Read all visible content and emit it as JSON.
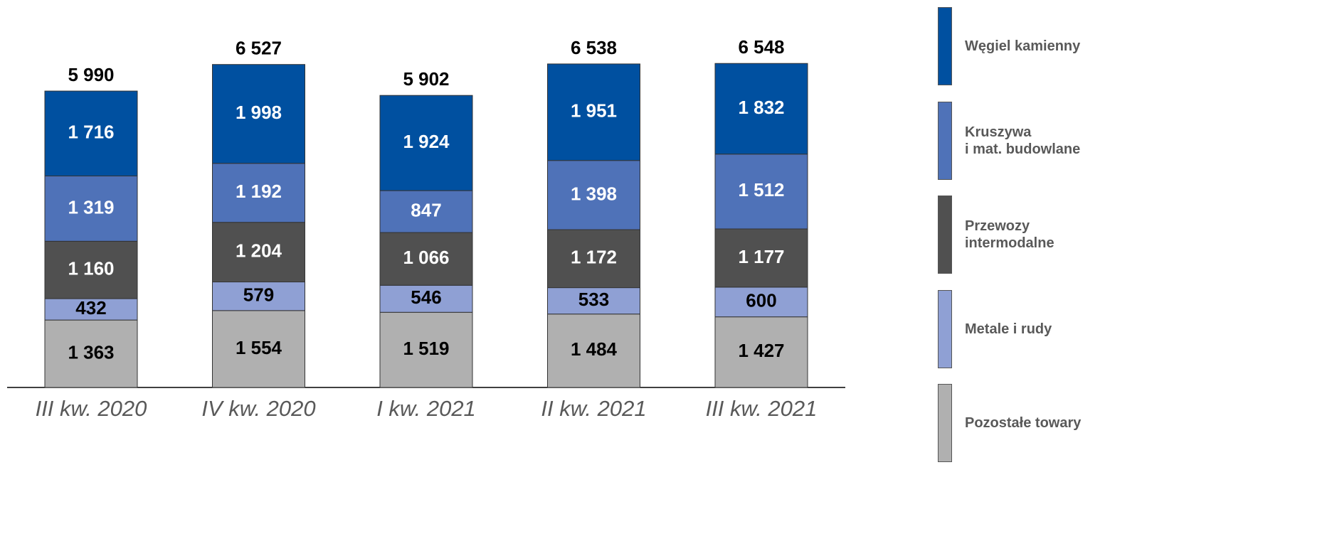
{
  "chart_data": {
    "type": "stacked_bar",
    "categories": [
      "III kw. 2020",
      "IV kw. 2020",
      "I kw. 2021",
      "II kw. 2021",
      "III kw. 2021"
    ],
    "series": [
      {
        "name": "Pozostałe towary",
        "color": "#b0b0b0",
        "label_color": "#000000",
        "values": [
          1363,
          1554,
          1519,
          1484,
          1427
        ],
        "value_labels": [
          "1 363",
          "1 554",
          "1 519",
          "1 484",
          "1 427"
        ]
      },
      {
        "name": "Metale i rudy",
        "color": "#8fa0d4",
        "label_color": "#000000",
        "values": [
          432,
          579,
          546,
          533,
          600
        ],
        "value_labels": [
          "432",
          "579",
          "546",
          "533",
          "600"
        ]
      },
      {
        "name": "Przewozy\nintermodalne",
        "color": "#505050",
        "label_color": "#ffffff",
        "values": [
          1160,
          1204,
          1066,
          1172,
          1177
        ],
        "value_labels": [
          "1 160",
          "1 204",
          "1 066",
          "1 172",
          "1 177"
        ]
      },
      {
        "name": "Kruszywa\ni mat. budowlane",
        "color": "#4f72b8",
        "label_color": "#ffffff",
        "values": [
          1319,
          1192,
          847,
          1398,
          1512
        ],
        "value_labels": [
          "1 319",
          "1 192",
          "847",
          "1 398",
          "1 512"
        ]
      },
      {
        "name": "Węgiel kamienny",
        "color": "#0050a0",
        "label_color": "#ffffff",
        "values": [
          1716,
          1998,
          1924,
          1951,
          1832
        ],
        "value_labels": [
          "1 716",
          "1 998",
          "1 924",
          "1 951",
          "1 832"
        ]
      }
    ],
    "totals": {
      "values": [
        5990,
        6527,
        5902,
        6538,
        6548
      ],
      "value_labels": [
        "5 990",
        "6 527",
        "5 902",
        "6 538",
        "6 548"
      ]
    },
    "ylim": [
      0,
      7830
    ]
  }
}
